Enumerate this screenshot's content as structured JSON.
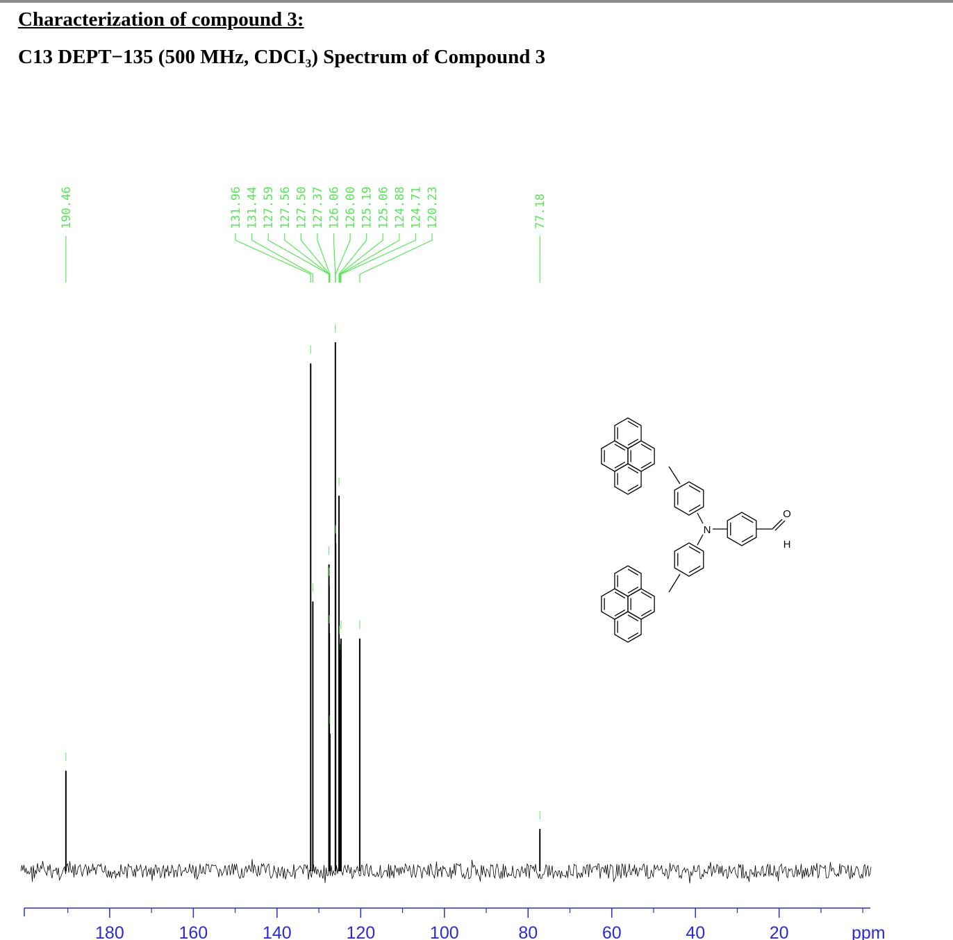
{
  "chart_data": {
    "type": "spectrum",
    "title": "Characterization of compound 3:",
    "subtitle": "C13 DEPT−135 (500 MHz, CDCI₃) Spectrum of Compound 3",
    "x": [
      190.46,
      131.96,
      131.44,
      127.59,
      127.56,
      127.5,
      127.37,
      126.06,
      126.0,
      125.19,
      125.06,
      124.88,
      124.71,
      120.23,
      77.18
    ],
    "x_labels": [
      "190.46",
      "131.96",
      "131.44",
      "127.59",
      "127.56",
      "127.50",
      "127.37",
      "126.06",
      "126.00",
      "125.19",
      "125.06",
      "124.88",
      "124.71",
      "120.23",
      "77.18"
    ],
    "values": [
      19,
      96,
      51,
      58,
      54,
      45,
      26,
      100,
      62,
      71,
      43,
      40,
      44,
      44,
      8
    ],
    "color": "#000000",
    "label_color": "#55e855",
    "axis_color": "#2a2ad8",
    "xlim": [
      200.4,
      -1.8
    ],
    "xticks": [
      180,
      160,
      140,
      120,
      100,
      80,
      60,
      40,
      20
    ],
    "minor_xticks": [
      190,
      170,
      150,
      130,
      110,
      90,
      70,
      50,
      30,
      10,
      0
    ],
    "x_label": "ppm",
    "structure_labels": [
      "N",
      "O",
      "H"
    ]
  }
}
